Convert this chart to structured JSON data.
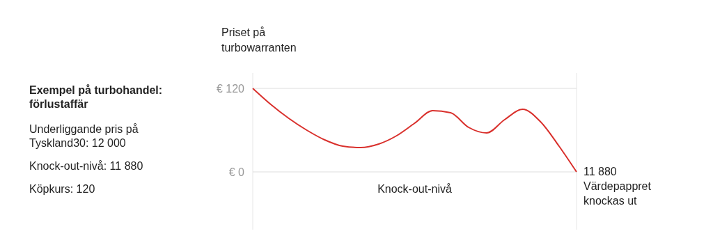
{
  "chart_data": {
    "type": "line",
    "title": "Exempel på turbohandel: förlustaffär",
    "ylabel": "Priset på turbowarranten",
    "xlabel": "Knock-out-nivå",
    "categories": [
      null,
      null,
      null,
      null,
      null,
      null,
      null,
      null,
      null,
      null,
      null,
      null,
      null,
      null,
      null,
      null,
      null,
      null,
      null
    ],
    "series": [
      {
        "color": "#d9302c",
        "values": [
          120,
          97,
          77,
          60,
          46,
          37,
          35,
          40,
          52,
          70,
          88,
          85,
          64,
          56,
          75,
          90,
          72,
          38,
          0
        ]
      }
    ],
    "ylim": [
      0,
      120
    ],
    "yticks": [
      {
        "value": 0,
        "label": "€ 0"
      },
      {
        "value": 120,
        "label": "€ 120"
      }
    ],
    "grid": "y",
    "marker": "none",
    "line_style": "solid",
    "annotations": [
      "Underliggande pris på Tyskland30: 12 000",
      "Knock-out-nivå: 11 880",
      "Köpkurs: 120",
      "11 880 Värdepappret knockas ut"
    ]
  }
}
